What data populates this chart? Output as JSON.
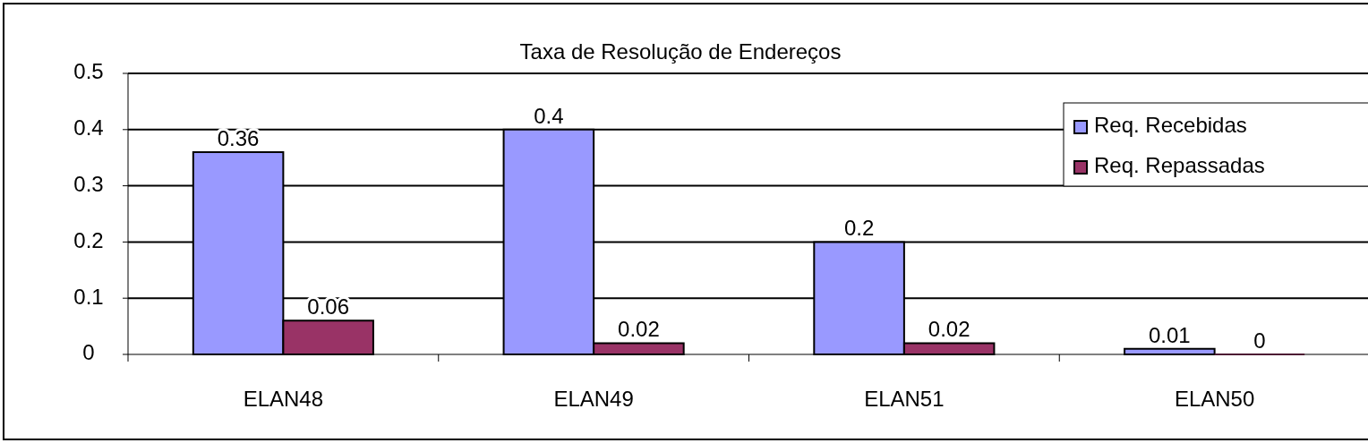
{
  "chart_data": {
    "type": "bar",
    "title": "Taxa de Resolução de Endereços",
    "categories": [
      "ELAN48",
      "ELAN49",
      "ELAN51",
      "ELAN50"
    ],
    "series": [
      {
        "name": "Req. Recebidas",
        "color": "#9999ff",
        "values": [
          0.36,
          0.4,
          0.2,
          0.01
        ]
      },
      {
        "name": "Req. Repassadas",
        "color": "#993366",
        "values": [
          0.06,
          0.02,
          0.02,
          0
        ]
      }
    ],
    "ylim": [
      0,
      0.5
    ],
    "yticks": [
      0,
      0.1,
      0.2,
      0.3,
      0.4,
      0.5
    ],
    "grid": "y",
    "legend": "top right",
    "data_labels": true
  }
}
